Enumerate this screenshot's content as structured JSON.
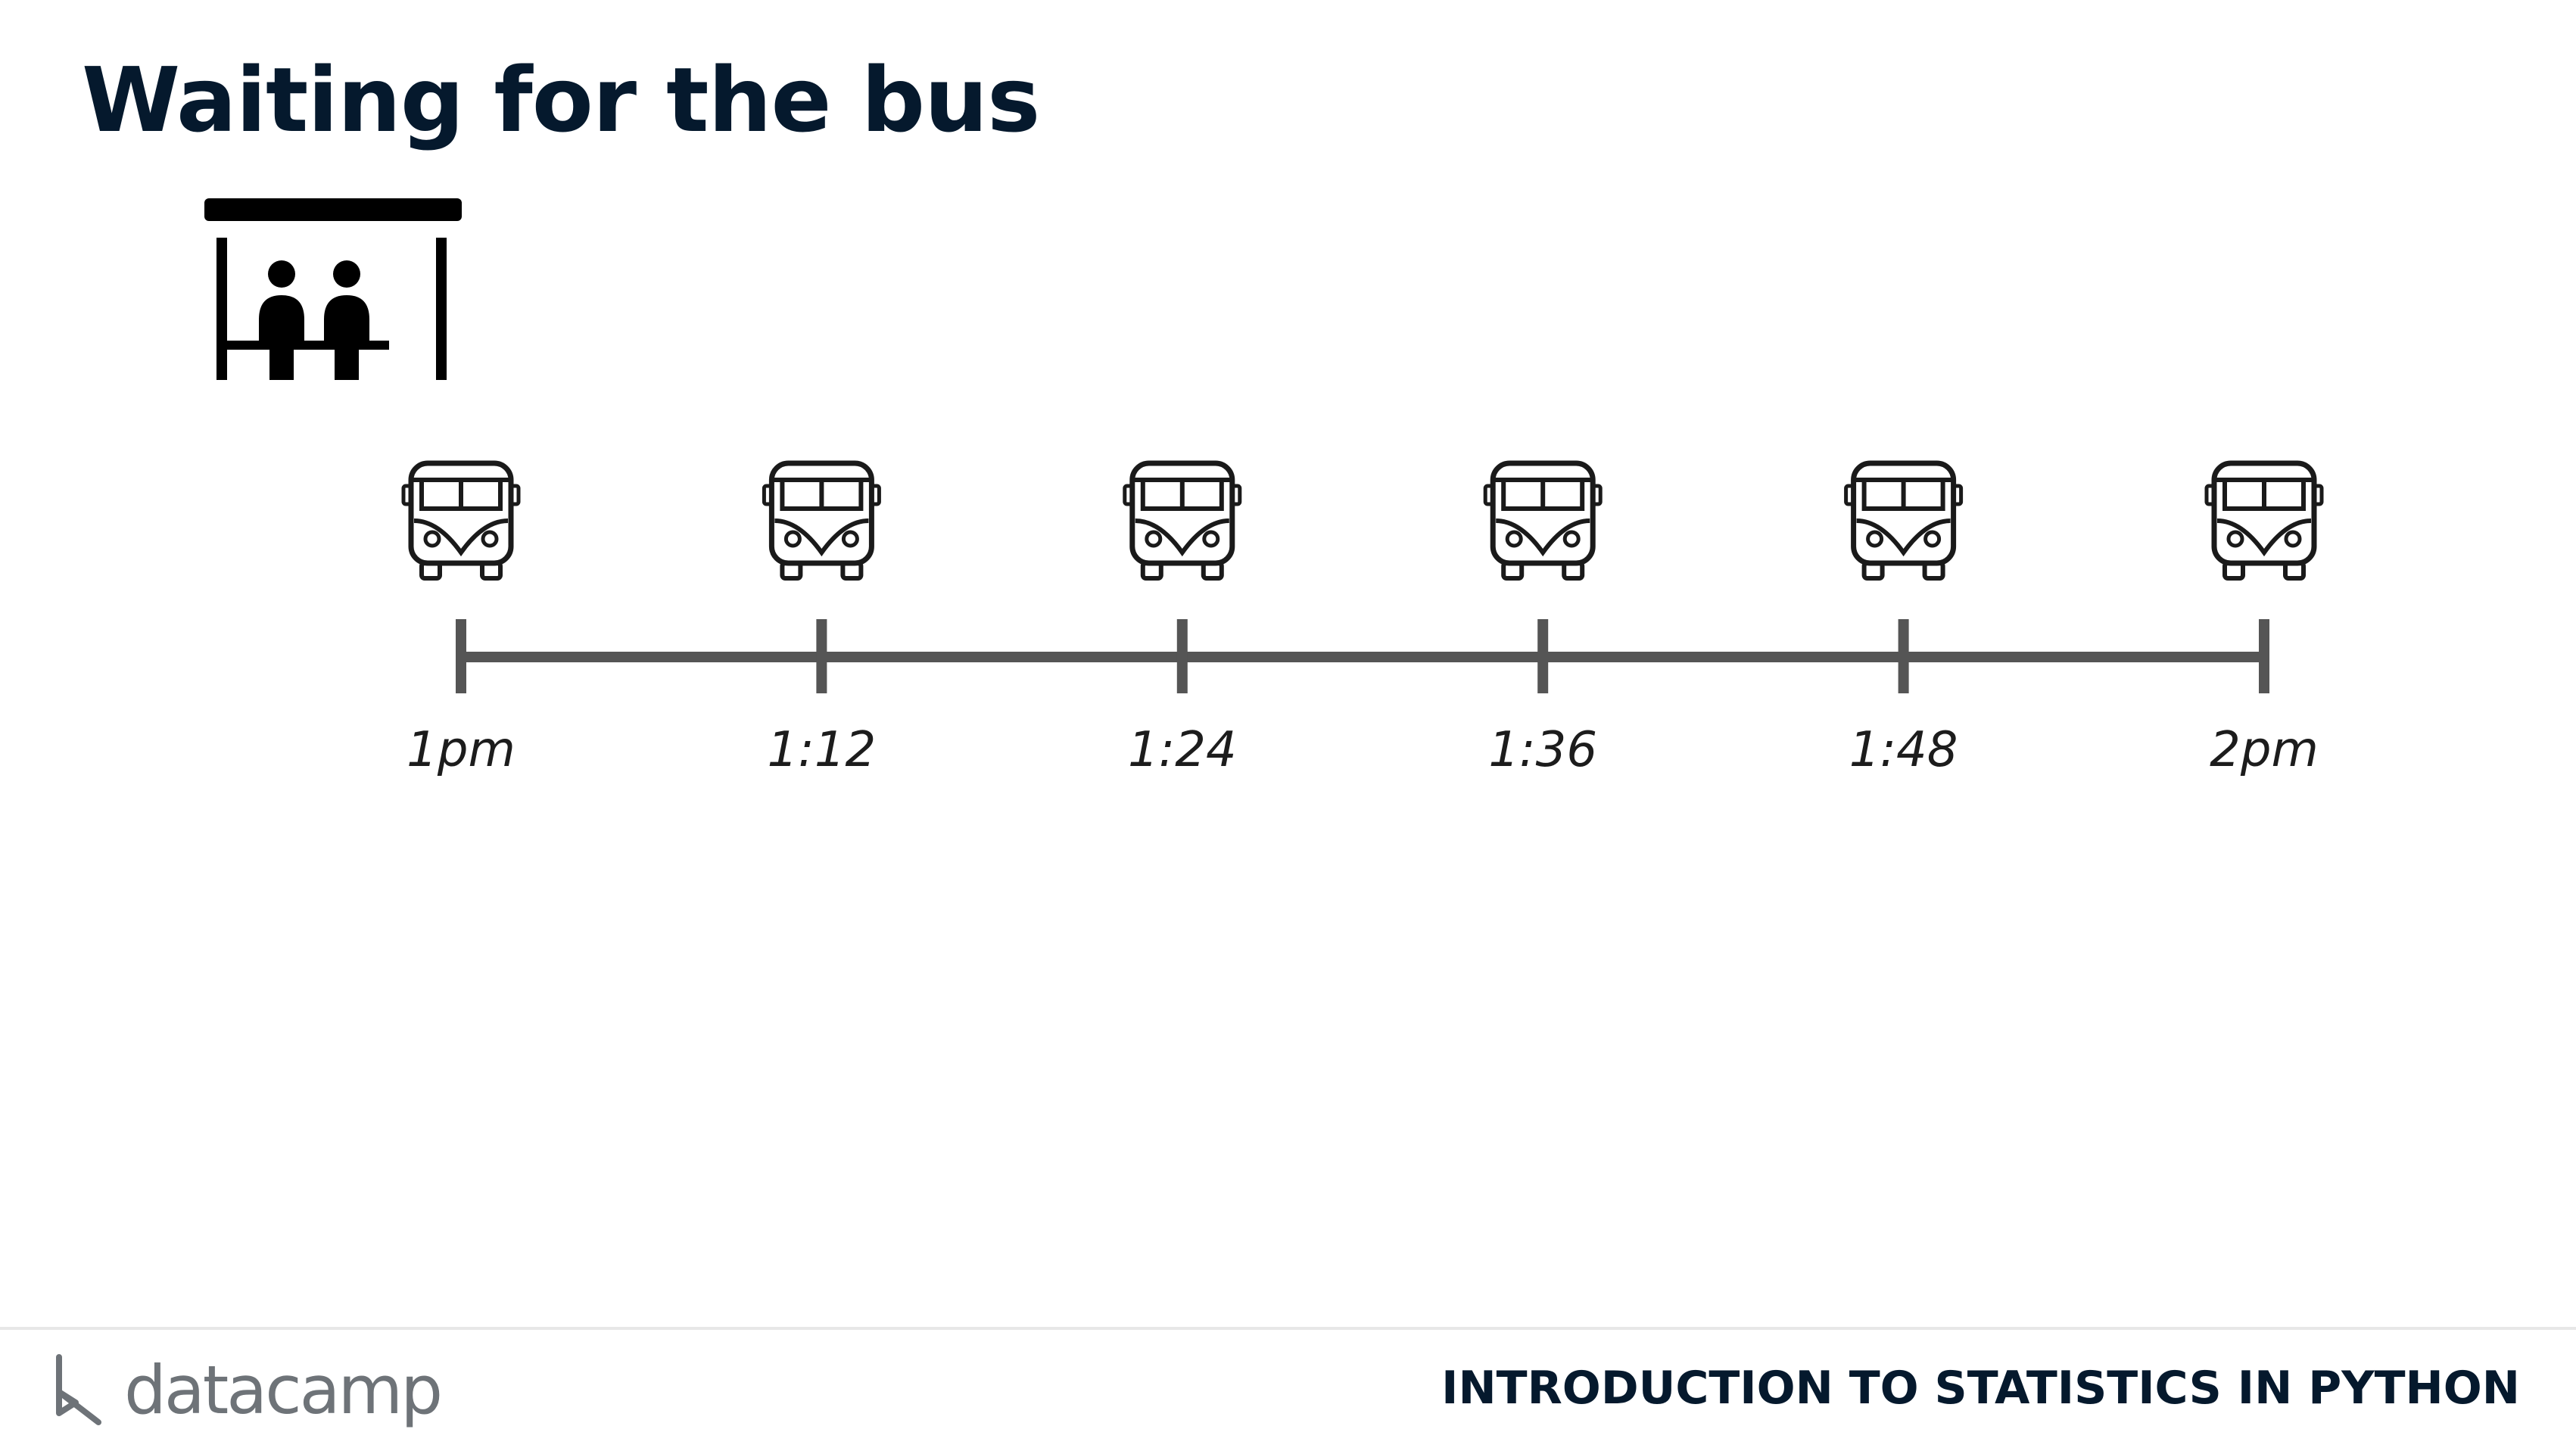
{
  "slide": {
    "title": "Waiting for the bus"
  },
  "diagram": {
    "shelter_icon": "bus-stop-shelter-icon",
    "bus_icon": "bus-icon",
    "times": [
      "1pm",
      "1:12",
      "1:24",
      "1:36",
      "1:48",
      "2pm"
    ]
  },
  "footer": {
    "logo_text": "datacamp",
    "course_title": "INTRODUCTION TO STATISTICS IN PYTHON"
  },
  "colors": {
    "title": "#05192d",
    "timeline": "#555555",
    "icons": "#1a1a1a",
    "logo": "#6e7378"
  }
}
